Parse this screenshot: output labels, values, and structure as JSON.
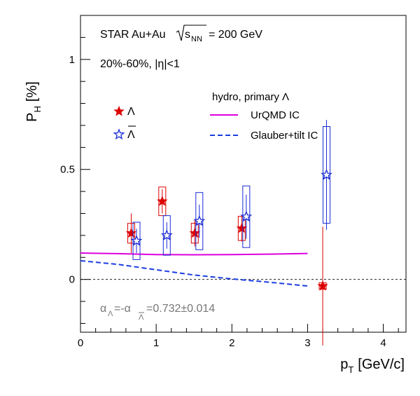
{
  "chart_data": {
    "type": "scatter",
    "xlabel": "p",
    "xlabel_sub": "T",
    "xlabel_unit": "[GeV/c]",
    "ylabel": "P",
    "ylabel_sub": "H",
    "ylabel_unit": "[%]",
    "xlim": [
      0,
      4.3
    ],
    "ylim": [
      -0.24,
      1.2
    ],
    "x_ticks": [
      0,
      1,
      2,
      3,
      4
    ],
    "y_ticks": [
      0,
      0.5,
      1
    ],
    "x_tick_labels": [
      "0",
      "1",
      "2",
      "3",
      "4"
    ],
    "y_tick_labels": [
      "0",
      "0.5",
      "1"
    ],
    "annotations": {
      "line1_prefix": "STAR Au+Au",
      "sqrt_arg": "s",
      "sqrt_sub": "NN",
      "line1_suffix": "= 200 GeV",
      "centrality": "20%-60%, |η|<1",
      "alpha_a": "α",
      "alpha_a_sub": "Λ",
      "alpha_mid": "=-α",
      "alpha_b_sub": "Λ",
      "alpha_value": "=0.732±0.014"
    },
    "legend": {
      "model_header": "hydro, primary Λ",
      "lambda_label": "Λ",
      "antilambda_label": "Λ"
    },
    "series": [
      {
        "name": "Λ",
        "marker": "filled-star",
        "color": "#dd0000",
        "points": [
          {
            "x": 0.67,
            "y": 0.21,
            "stat": 0.09,
            "sys": 0.045
          },
          {
            "x": 1.08,
            "y": 0.355,
            "stat": 0.055,
            "sys": 0.065
          },
          {
            "x": 1.51,
            "y": 0.21,
            "stat": 0.06,
            "sys": 0.045
          },
          {
            "x": 2.13,
            "y": 0.232,
            "stat": 0.06,
            "sys": 0.055
          },
          {
            "x": 3.2,
            "y": -0.03,
            "stat": 0.27,
            "sys": 0.015
          }
        ]
      },
      {
        "name": "Λ",
        "marker": "open-star",
        "color": "#1a2bd6",
        "points": [
          {
            "x": 0.74,
            "y": 0.175,
            "stat": 0.055,
            "sys": 0.085
          },
          {
            "x": 1.14,
            "y": 0.2,
            "stat": 0.06,
            "sys": 0.09
          },
          {
            "x": 1.57,
            "y": 0.265,
            "stat": 0.075,
            "sys": 0.13
          },
          {
            "x": 2.19,
            "y": 0.285,
            "stat": 0.1,
            "sys": 0.14
          },
          {
            "x": 3.25,
            "y": 0.475,
            "stat": 0.25,
            "sys": 0.22
          }
        ]
      },
      {
        "name": "UrQMD IC",
        "style": "solid-line",
        "color": "#dd00dd",
        "x": [
          0,
          0.5,
          1.0,
          1.5,
          2.0,
          2.5,
          3.0
        ],
        "y": [
          0.12,
          0.117,
          0.113,
          0.112,
          0.113,
          0.115,
          0.118
        ]
      },
      {
        "name": "Glauber+tilt IC",
        "style": "dashed-line",
        "color": "#1a3de0",
        "x": [
          0,
          0.5,
          1.0,
          1.5,
          2.0,
          2.5,
          3.0
        ],
        "y": [
          0.085,
          0.068,
          0.044,
          0.02,
          0.002,
          -0.013,
          -0.03
        ]
      }
    ],
    "zero_line": "dashed"
  }
}
